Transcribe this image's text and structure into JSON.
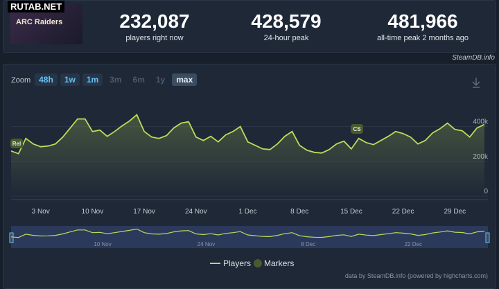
{
  "watermark": "RUTAB.NET",
  "game": {
    "logo_text": "ARC Raiders"
  },
  "stats": [
    {
      "value": "232,087",
      "label": "players right now"
    },
    {
      "value": "428,579",
      "label": "24-hour peak"
    },
    {
      "value": "481,966",
      "label": "all-time peak 2 months ago"
    }
  ],
  "source": "SteamDB.info",
  "zoom": {
    "label": "Zoom",
    "buttons": [
      "48h",
      "1w",
      "1m",
      "3m",
      "6m",
      "1y",
      "max"
    ],
    "selected": "max"
  },
  "credits": "data by SteamDB.info (powered by highcharts.com)",
  "chart_data": {
    "type": "line",
    "categories": [
      null,
      null,
      null,
      null,
      "3 Nov",
      null,
      null,
      null,
      null,
      null,
      null,
      "10 Nov",
      null,
      null,
      null,
      null,
      null,
      null,
      "17 Nov",
      null,
      null,
      null,
      null,
      null,
      null,
      "24 Nov",
      null,
      null,
      null,
      null,
      null,
      null,
      "1 Dec",
      null,
      null,
      null,
      null,
      null,
      null,
      "8 Dec",
      null,
      null,
      null,
      null,
      null,
      null,
      "15 Dec",
      null,
      null,
      null,
      null,
      null,
      null,
      "22 Dec",
      null,
      null,
      null,
      null,
      null,
      null,
      "29 Dec",
      null,
      null,
      null,
      null
    ],
    "series": [
      {
        "name": "Players",
        "color": "#bcdb5a",
        "values": [
          260000,
          244000,
          332000,
          300000,
          284000,
          288000,
          300000,
          340000,
          392000,
          444000,
          444000,
          372000,
          380000,
          344000,
          372000,
          404000,
          432000,
          468000,
          372000,
          340000,
          332000,
          348000,
          392000,
          420000,
          428000,
          340000,
          320000,
          344000,
          312000,
          352000,
          372000,
          400000,
          312000,
          292000,
          272000,
          268000,
          300000,
          344000,
          372000,
          292000,
          264000,
          252000,
          248000,
          268000,
          300000,
          316000,
          272000,
          332000,
          308000,
          296000,
          320000,
          344000,
          372000,
          360000,
          340000,
          300000,
          320000,
          364000,
          388000,
          420000,
          384000,
          376000,
          340000,
          392000,
          412000
        ]
      }
    ],
    "markers": {
      "name": "Markers",
      "color": "#4a5a2c",
      "labels": [
        "Rel",
        "CS"
      ]
    },
    "ylim": [
      0,
      550000
    ],
    "yticks": [
      0,
      {
        "value": 200000,
        "label": "200k"
      },
      {
        "value": 400000,
        "label": "400k"
      }
    ],
    "grid": true
  }
}
